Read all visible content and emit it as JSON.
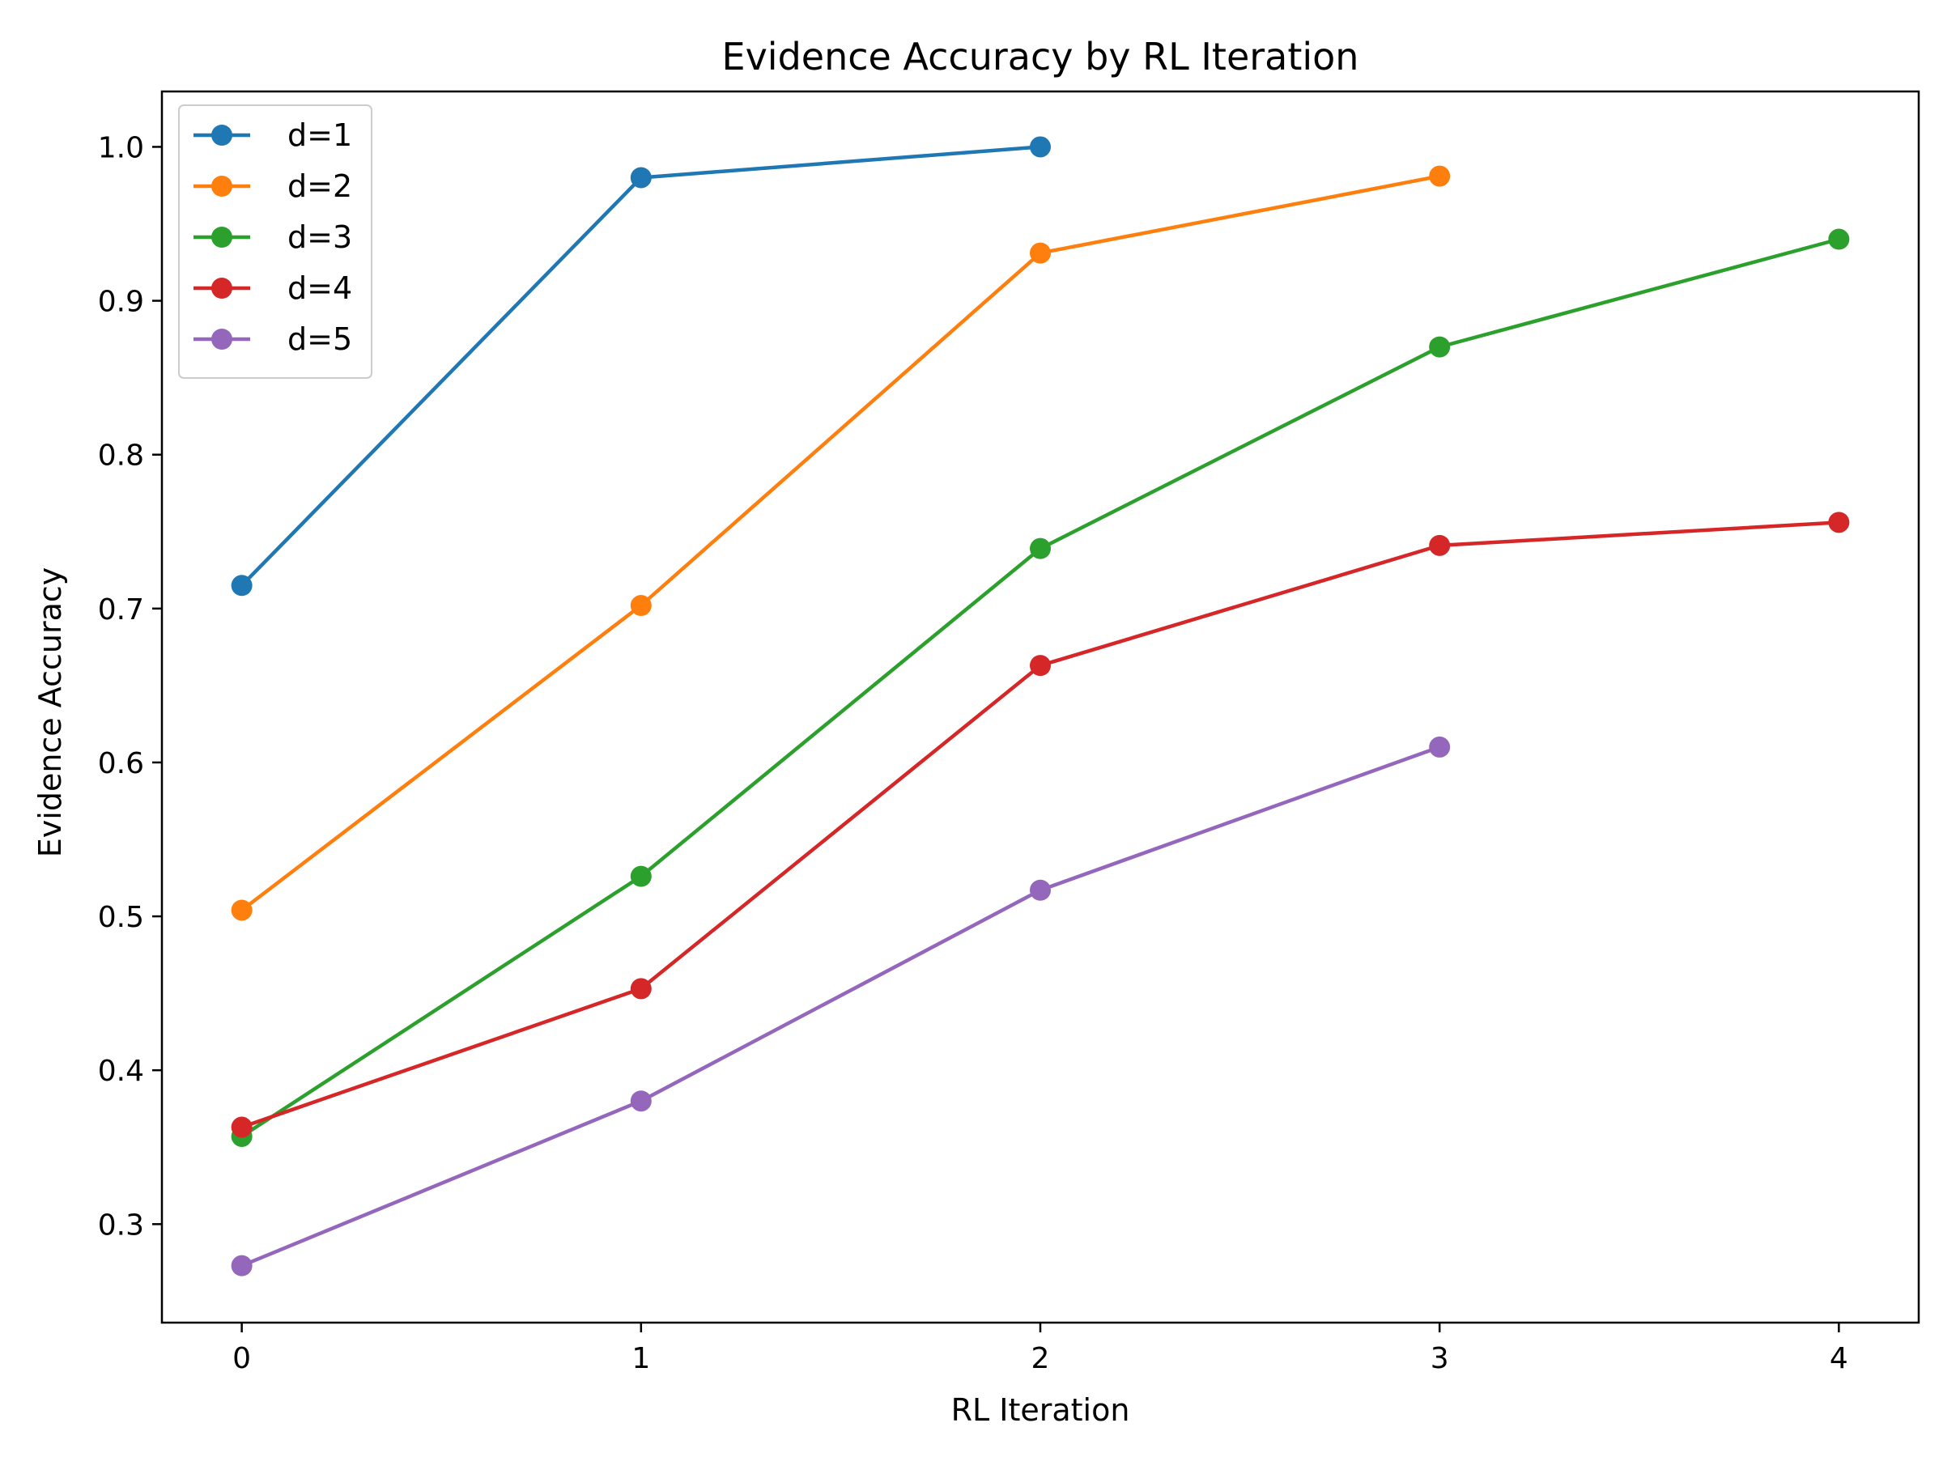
{
  "chart_data": {
    "type": "line",
    "title": "Evidence Accuracy by RL Iteration",
    "xlabel": "RL Iteration",
    "ylabel": "Evidence Accuracy",
    "x_ticks": [
      0,
      1,
      2,
      3,
      4
    ],
    "y_ticks": [
      0.3,
      0.4,
      0.5,
      0.6,
      0.7,
      0.8,
      0.9,
      1.0
    ],
    "y_tick_labels": [
      "0.3",
      "0.4",
      "0.5",
      "0.6",
      "0.7",
      "0.8",
      "0.9",
      "1.0"
    ],
    "xlim": [
      -0.2,
      4.2
    ],
    "ylim": [
      0.236,
      1.036
    ],
    "grid": false,
    "legend_position": "top-left",
    "series": [
      {
        "name": "d=1",
        "color": "#1f77b4",
        "x": [
          0,
          1,
          2
        ],
        "values": [
          0.715,
          0.98,
          1.0
        ]
      },
      {
        "name": "d=2",
        "color": "#ff7f0e",
        "x": [
          0,
          1,
          2,
          3
        ],
        "values": [
          0.504,
          0.702,
          0.931,
          0.981
        ]
      },
      {
        "name": "d=3",
        "color": "#2ca02c",
        "x": [
          0,
          1,
          2,
          3,
          4
        ],
        "values": [
          0.357,
          0.526,
          0.739,
          0.87,
          0.94
        ]
      },
      {
        "name": "d=4",
        "color": "#d62728",
        "x": [
          0,
          1,
          2,
          3,
          4
        ],
        "values": [
          0.363,
          0.453,
          0.663,
          0.741,
          0.756
        ]
      },
      {
        "name": "d=5",
        "color": "#9467bd",
        "x": [
          0,
          1,
          2,
          3
        ],
        "values": [
          0.273,
          0.38,
          0.517,
          0.61
        ]
      }
    ]
  }
}
